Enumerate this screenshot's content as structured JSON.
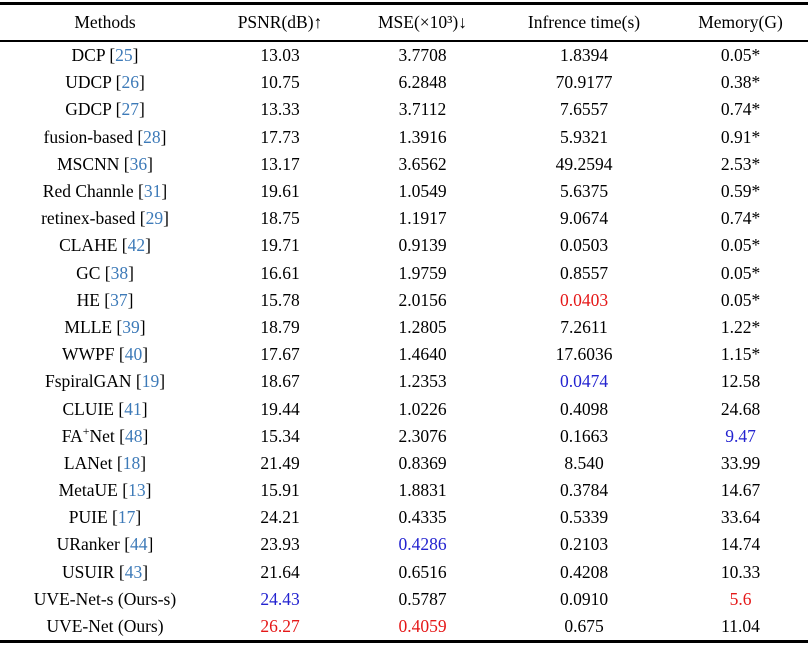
{
  "table": {
    "headers": [
      {
        "label": "Methods"
      },
      {
        "label": "PSNR(dB)↑"
      },
      {
        "label": "MSE(×10³)↓"
      },
      {
        "label": "Infrence time(s)"
      },
      {
        "label": "Memory(G)"
      }
    ],
    "colors": {
      "text": "#000000",
      "red": "#e51818",
      "blue": "#2323d0",
      "cite": "#3d7ab8"
    },
    "rows": [
      {
        "name": "DCP",
        "cite": "25",
        "cells": [
          [
            "13.03",
            ""
          ],
          [
            "3.7708",
            ""
          ],
          [
            "1.8394",
            ""
          ],
          [
            "0.05*",
            ""
          ]
        ]
      },
      {
        "name": "UDCP",
        "cite": "26",
        "cells": [
          [
            "10.75",
            ""
          ],
          [
            "6.2848",
            ""
          ],
          [
            "70.9177",
            ""
          ],
          [
            "0.38*",
            ""
          ]
        ]
      },
      {
        "name": "GDCP",
        "cite": "27",
        "cells": [
          [
            "13.33",
            ""
          ],
          [
            "3.7112",
            ""
          ],
          [
            "7.6557",
            ""
          ],
          [
            "0.74*",
            ""
          ]
        ]
      },
      {
        "name": "fusion-based",
        "cite": "28",
        "cells": [
          [
            "17.73",
            ""
          ],
          [
            "1.3916",
            ""
          ],
          [
            "5.9321",
            ""
          ],
          [
            "0.91*",
            ""
          ]
        ]
      },
      {
        "name": "MSCNN",
        "cite": "36",
        "cells": [
          [
            "13.17",
            ""
          ],
          [
            "3.6562",
            ""
          ],
          [
            "49.2594",
            ""
          ],
          [
            "2.53*",
            ""
          ]
        ]
      },
      {
        "name": "Red Channle",
        "cite": "31",
        "cells": [
          [
            "19.61",
            ""
          ],
          [
            "1.0549",
            ""
          ],
          [
            "5.6375",
            ""
          ],
          [
            "0.59*",
            ""
          ]
        ]
      },
      {
        "name": "retinex-based",
        "cite": "29",
        "cells": [
          [
            "18.75",
            ""
          ],
          [
            "1.1917",
            ""
          ],
          [
            "9.0674",
            ""
          ],
          [
            "0.74*",
            ""
          ]
        ]
      },
      {
        "name": "CLAHE",
        "cite": "42",
        "cells": [
          [
            "19.71",
            ""
          ],
          [
            "0.9139",
            ""
          ],
          [
            "0.0503",
            ""
          ],
          [
            "0.05*",
            ""
          ]
        ]
      },
      {
        "name": "GC",
        "cite": "38",
        "cells": [
          [
            "16.61",
            ""
          ],
          [
            "1.9759",
            ""
          ],
          [
            "0.8557",
            ""
          ],
          [
            "0.05*",
            ""
          ]
        ]
      },
      {
        "name": "HE",
        "cite": "37",
        "cells": [
          [
            "15.78",
            ""
          ],
          [
            "2.0156",
            ""
          ],
          [
            "0.0403",
            "r"
          ],
          [
            "0.05*",
            ""
          ]
        ]
      },
      {
        "name": "MLLE",
        "cite": "39",
        "cells": [
          [
            "18.79",
            ""
          ],
          [
            "1.2805",
            ""
          ],
          [
            "7.2611",
            ""
          ],
          [
            "1.22*",
            ""
          ]
        ]
      },
      {
        "name": "WWPF",
        "cite": "40",
        "cells": [
          [
            "17.67",
            ""
          ],
          [
            "1.4640",
            ""
          ],
          [
            "17.6036",
            ""
          ],
          [
            "1.15*",
            ""
          ]
        ]
      },
      {
        "name": "FspiralGAN",
        "cite": "19",
        "cells": [
          [
            "18.67",
            ""
          ],
          [
            "1.2353",
            ""
          ],
          [
            "0.0474",
            "b"
          ],
          [
            "12.58",
            ""
          ]
        ]
      },
      {
        "name": "CLUIE",
        "cite": "41",
        "cells": [
          [
            "19.44",
            ""
          ],
          [
            "1.0226",
            ""
          ],
          [
            "0.4098",
            ""
          ],
          [
            "24.68",
            ""
          ]
        ]
      },
      {
        "name": "FA",
        "name_sup": "+",
        "name_post": "Net",
        "cite": "48",
        "cells": [
          [
            "15.34",
            ""
          ],
          [
            "2.3076",
            ""
          ],
          [
            "0.1663",
            ""
          ],
          [
            "9.47",
            "b"
          ]
        ]
      },
      {
        "name": "LANet",
        "cite": "18",
        "cells": [
          [
            "21.49",
            ""
          ],
          [
            "0.8369",
            ""
          ],
          [
            "8.540",
            ""
          ],
          [
            "33.99",
            ""
          ]
        ]
      },
      {
        "name": "MetaUE",
        "cite": "13",
        "cells": [
          [
            "15.91",
            ""
          ],
          [
            "1.8831",
            ""
          ],
          [
            "0.3784",
            ""
          ],
          [
            "14.67",
            ""
          ]
        ]
      },
      {
        "name": "PUIE",
        "cite": "17",
        "cells": [
          [
            "24.21",
            ""
          ],
          [
            "0.4335",
            ""
          ],
          [
            "0.5339",
            ""
          ],
          [
            "33.64",
            ""
          ]
        ]
      },
      {
        "name": "URanker",
        "cite": "44",
        "cells": [
          [
            "23.93",
            ""
          ],
          [
            "0.4286",
            "b"
          ],
          [
            "0.2103",
            ""
          ],
          [
            "14.74",
            ""
          ]
        ]
      },
      {
        "name": "USUIR",
        "cite": "43",
        "cells": [
          [
            "21.64",
            ""
          ],
          [
            "0.6516",
            ""
          ],
          [
            "0.4208",
            ""
          ],
          [
            "10.33",
            ""
          ]
        ]
      },
      {
        "name": "UVE-Net-s (Ours-s)",
        "cite": "",
        "cells": [
          [
            "24.43",
            "b"
          ],
          [
            "0.5787",
            ""
          ],
          [
            "0.0910",
            ""
          ],
          [
            "5.6",
            "r"
          ]
        ]
      },
      {
        "name": "UVE-Net (Ours)",
        "cite": "",
        "cells": [
          [
            "26.27",
            "r"
          ],
          [
            "0.4059",
            "r"
          ],
          [
            "0.675",
            ""
          ],
          [
            "11.04",
            ""
          ]
        ]
      }
    ]
  }
}
